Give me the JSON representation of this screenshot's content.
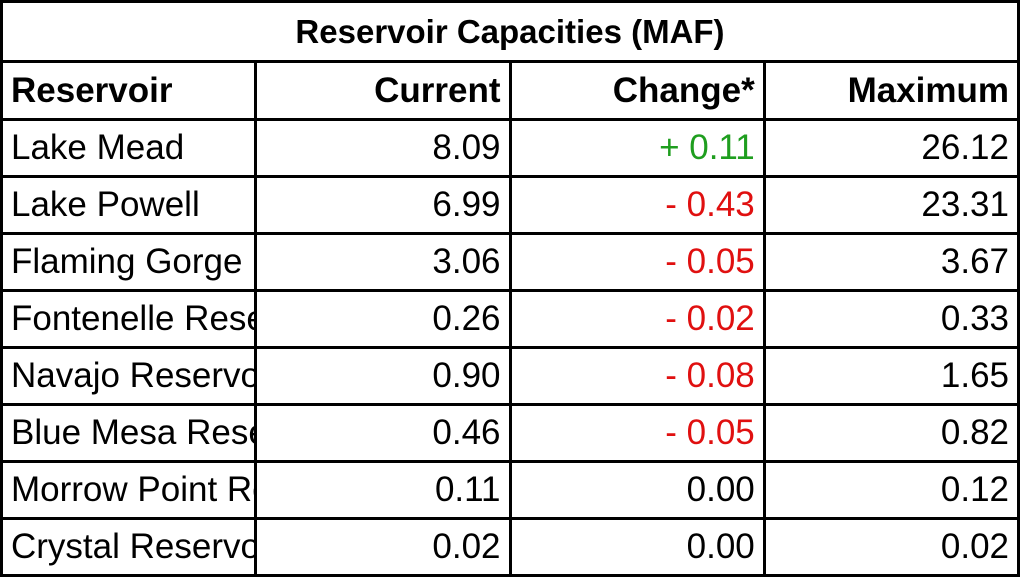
{
  "title": "Reservoir Capacities (MAF)",
  "headers": {
    "reservoir": "Reservoir",
    "current": "Current",
    "change": "Change*",
    "maximum": "Maximum"
  },
  "rows": [
    {
      "reservoir": "Lake Mead",
      "current": "8.09",
      "change": "+ 0.11",
      "change_sign": "pos",
      "maximum": "26.12"
    },
    {
      "reservoir": "Lake Powell",
      "current": "6.99",
      "change": "- 0.43",
      "change_sign": "neg",
      "maximum": "23.31"
    },
    {
      "reservoir": "Flaming Gorge Reservoir",
      "current": "3.06",
      "change": "- 0.05",
      "change_sign": "neg",
      "maximum": "3.67"
    },
    {
      "reservoir": "Fontenelle Reservoir",
      "current": "0.26",
      "change": "- 0.02",
      "change_sign": "neg",
      "maximum": "0.33"
    },
    {
      "reservoir": "Navajo Reservoir",
      "current": "0.90",
      "change": "- 0.08",
      "change_sign": "neg",
      "maximum": "1.65"
    },
    {
      "reservoir": "Blue Mesa Reservoir",
      "current": "0.46",
      "change": "- 0.05",
      "change_sign": "neg",
      "maximum": "0.82"
    },
    {
      "reservoir": "Morrow Point Reservoir",
      "current": "0.11",
      "change": "0.00",
      "change_sign": "zero",
      "maximum": "0.12"
    },
    {
      "reservoir": "Crystal Reservoir",
      "current": "0.02",
      "change": "0.00",
      "change_sign": "zero",
      "maximum": "0.02"
    }
  ],
  "colors": {
    "positive": "#1f9e1f",
    "negative": "#e01010",
    "neutral": "#000000",
    "border": "#000000"
  }
}
